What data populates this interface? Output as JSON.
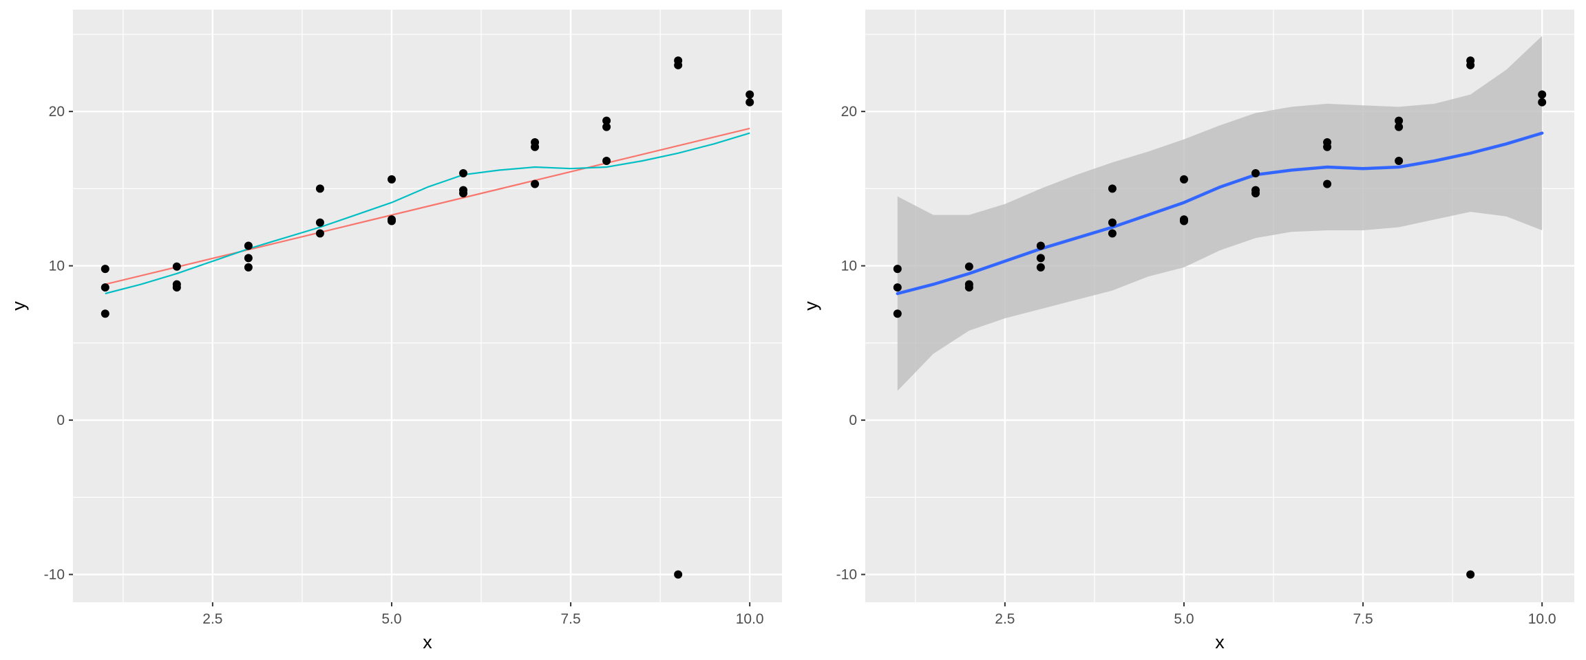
{
  "chart_data": [
    {
      "type": "scatter",
      "panel": "left",
      "xlabel": "x",
      "ylabel": "y",
      "xlim": [
        0.55,
        10.45
      ],
      "ylim": [
        -11.8,
        26.6
      ],
      "x_ticks": [
        2.5,
        5.0,
        7.5,
        10.0
      ],
      "x_tick_labels": [
        "2.5",
        "5.0",
        "7.5",
        "10.0"
      ],
      "y_ticks": [
        -10,
        0,
        10,
        20
      ],
      "y_tick_labels": [
        "-10",
        "0",
        "10",
        "20"
      ],
      "grid": true,
      "background": "#ebebeb",
      "points": {
        "x": [
          1,
          1,
          1,
          2,
          2,
          2,
          3,
          3,
          3,
          4,
          4,
          4,
          5,
          5,
          5,
          6,
          6,
          6,
          7,
          7,
          7,
          8,
          8,
          8,
          9,
          9,
          9,
          10,
          10
        ],
        "y": [
          9.8,
          8.6,
          6.9,
          9.95,
          8.8,
          8.6,
          11.3,
          10.5,
          9.9,
          15.0,
          12.8,
          12.1,
          15.6,
          13.0,
          12.9,
          16.0,
          14.9,
          14.7,
          18.0,
          17.7,
          15.3,
          19.4,
          19.0,
          16.8,
          23.3,
          23.0,
          -10.0,
          21.1,
          20.6
        ]
      },
      "lines": [
        {
          "color": "#f8766d",
          "x": [
            1,
            10
          ],
          "y": [
            8.8,
            18.9
          ]
        },
        {
          "color": "#00bfc4",
          "x": [
            1,
            1.5,
            2,
            2.5,
            3,
            3.5,
            4,
            4.5,
            5,
            5.5,
            6,
            6.5,
            7,
            7.5,
            8,
            8.5,
            9,
            9.5,
            10
          ],
          "y": [
            8.2,
            8.8,
            9.5,
            10.3,
            11.1,
            11.8,
            12.5,
            13.3,
            14.1,
            15.1,
            15.9,
            16.2,
            16.4,
            16.3,
            16.4,
            16.8,
            17.3,
            17.9,
            18.6
          ]
        }
      ]
    },
    {
      "type": "scatter",
      "panel": "right",
      "xlabel": "x",
      "ylabel": "y",
      "xlim": [
        0.55,
        10.45
      ],
      "ylim": [
        -11.8,
        26.6
      ],
      "x_ticks": [
        2.5,
        5.0,
        7.5,
        10.0
      ],
      "x_tick_labels": [
        "2.5",
        "5.0",
        "7.5",
        "10.0"
      ],
      "y_ticks": [
        -10,
        0,
        10,
        20
      ],
      "y_tick_labels": [
        "-10",
        "0",
        "10",
        "20"
      ],
      "grid": true,
      "background": "#ebebeb",
      "points": {
        "x": [
          1,
          1,
          1,
          2,
          2,
          2,
          3,
          3,
          3,
          4,
          4,
          4,
          5,
          5,
          5,
          6,
          6,
          6,
          7,
          7,
          7,
          8,
          8,
          8,
          9,
          9,
          9,
          10,
          10
        ],
        "y": [
          9.8,
          8.6,
          6.9,
          9.95,
          8.8,
          8.6,
          11.3,
          10.5,
          9.9,
          15.0,
          12.8,
          12.1,
          15.6,
          13.0,
          12.9,
          16.0,
          14.9,
          14.7,
          18.0,
          17.7,
          15.3,
          19.4,
          19.0,
          16.8,
          23.3,
          23.0,
          -10.0,
          21.1,
          20.6
        ]
      },
      "smooth": {
        "color": "#3366ff",
        "ribbon_color": "#bebebe",
        "x": [
          1,
          1.5,
          2,
          2.5,
          3,
          3.5,
          4,
          4.5,
          5,
          5.5,
          6,
          6.5,
          7,
          7.5,
          8,
          8.5,
          9,
          9.5,
          10
        ],
        "y": [
          8.2,
          8.8,
          9.5,
          10.3,
          11.1,
          11.8,
          12.5,
          13.3,
          14.1,
          15.1,
          15.9,
          16.2,
          16.4,
          16.3,
          16.4,
          16.8,
          17.3,
          17.9,
          18.6
        ],
        "lower": [
          1.9,
          4.3,
          5.8,
          6.6,
          7.2,
          7.8,
          8.4,
          9.3,
          9.9,
          11.0,
          11.8,
          12.2,
          12.3,
          12.3,
          12.5,
          13.0,
          13.5,
          13.2,
          12.3
        ],
        "upper": [
          14.5,
          13.3,
          13.3,
          14.0,
          15.0,
          15.9,
          16.7,
          17.4,
          18.2,
          19.1,
          19.9,
          20.3,
          20.5,
          20.4,
          20.3,
          20.5,
          21.1,
          22.7,
          24.9
        ]
      }
    }
  ]
}
